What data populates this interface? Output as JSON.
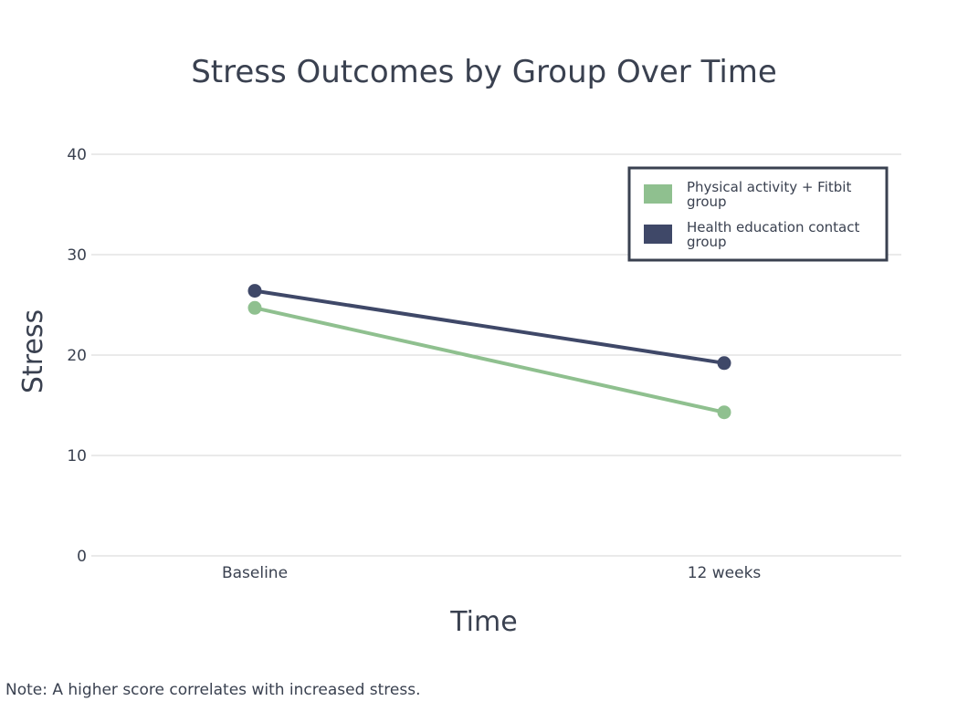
{
  "chart_data": {
    "type": "line",
    "title": "Stress Outcomes by Group Over Time",
    "xlabel": "Time",
    "ylabel": "Stress",
    "categories": [
      "Baseline",
      "12 weeks"
    ],
    "ylim": [
      0,
      40
    ],
    "yticks": [
      0,
      10,
      20,
      30,
      40
    ],
    "grid": true,
    "legend_position": "top-right",
    "series": [
      {
        "name": "Physical activity + Fitbit group",
        "legend_lines": [
          "Physical activity + Fitbit",
          "group"
        ],
        "values": [
          24.7,
          14.3
        ],
        "color": "#8fc08f"
      },
      {
        "name": "Health education contact group",
        "legend_lines": [
          "Health education contact",
          "group"
        ],
        "values": [
          26.4,
          19.2
        ],
        "color": "#3f4868"
      }
    ]
  },
  "note": "Note: A higher score correlates with increased stress."
}
